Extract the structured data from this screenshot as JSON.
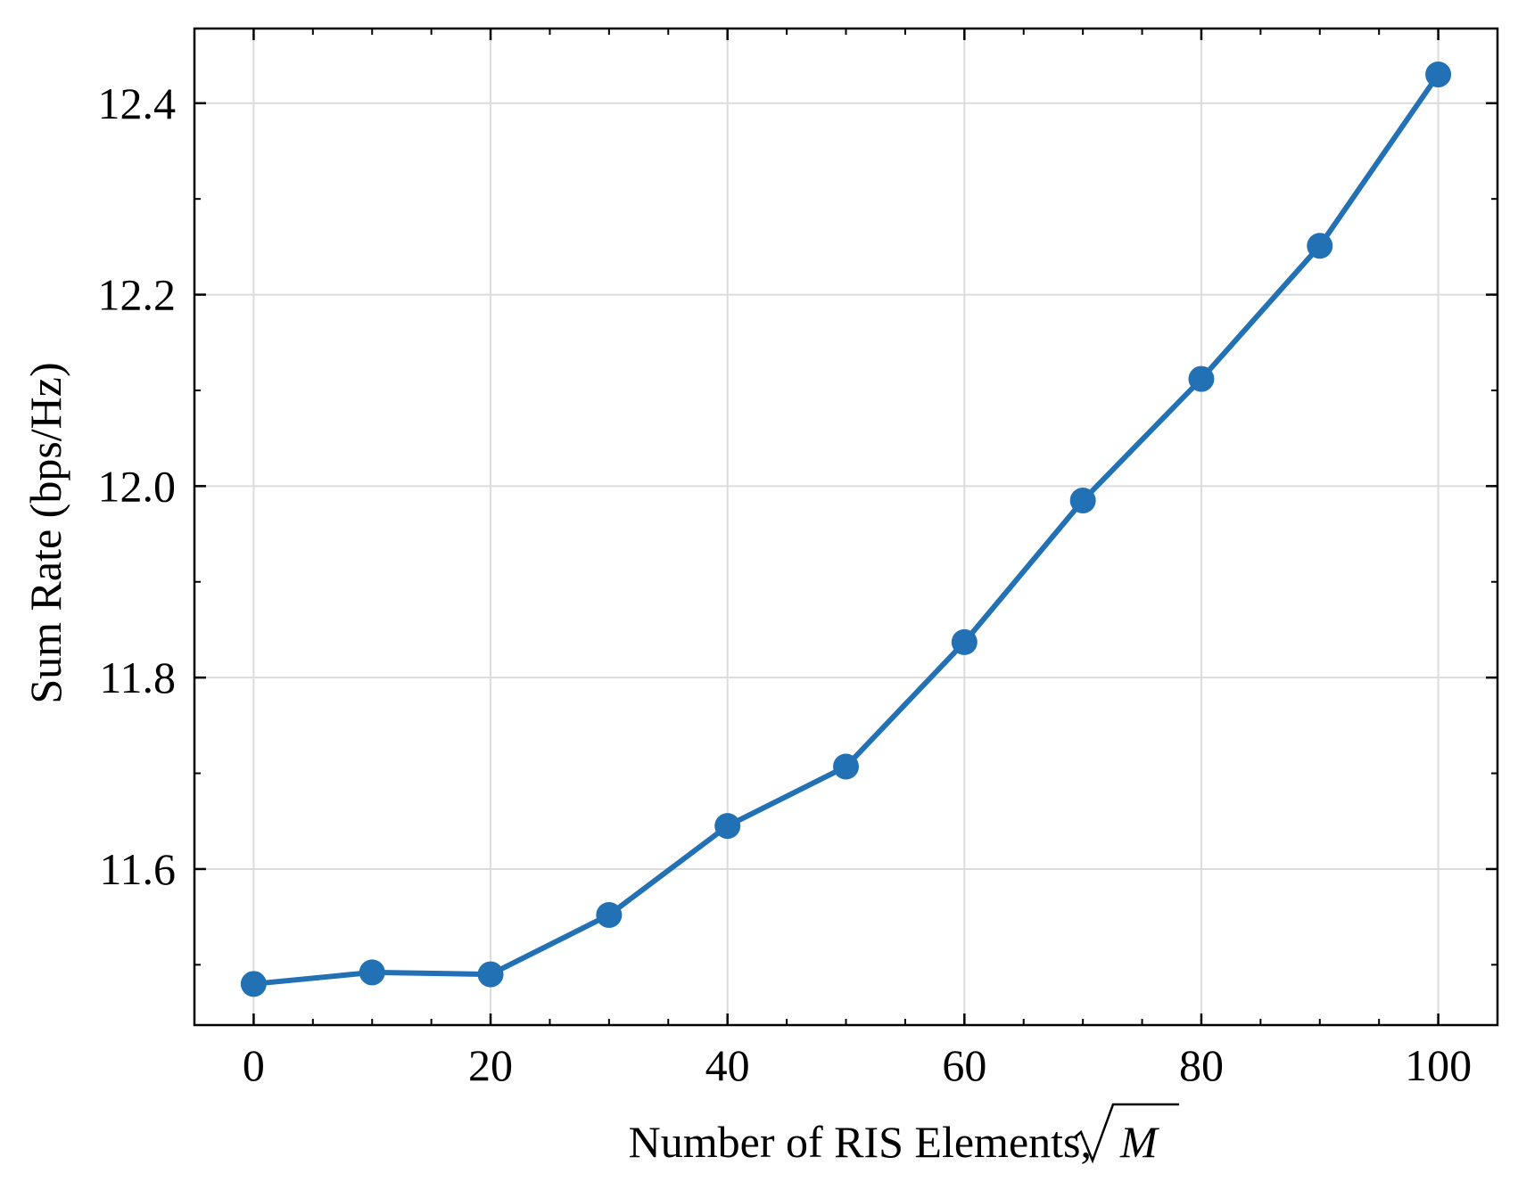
{
  "chart_data": {
    "type": "line",
    "title": "",
    "xlabel": "Number of RIS Elements, ",
    "xlabel_math": "√M",
    "ylabel": "Sum Rate (bps/Hz)",
    "xlim": [
      -5,
      105
    ],
    "ylim": [
      11.437,
      12.478
    ],
    "grid": true,
    "xticks": [
      0,
      20,
      40,
      60,
      80,
      100
    ],
    "xtick_labels": [
      "0",
      "20",
      "40",
      "60",
      "80",
      "100"
    ],
    "yticks": [
      11.6,
      11.8,
      12.0,
      12.2,
      12.4
    ],
    "ytick_labels": [
      "11.6",
      "11.8",
      "12.0",
      "12.2",
      "12.4"
    ],
    "x_minor_step": 5,
    "y_minor_step": 0.1,
    "series": [
      {
        "name": "",
        "color": "#2271b5",
        "marker": "circle",
        "x": [
          0,
          10,
          20,
          30,
          40,
          50,
          60,
          70,
          80,
          90,
          100
        ],
        "y": [
          11.48,
          11.492,
          11.49,
          11.552,
          11.645,
          11.707,
          11.837,
          11.985,
          12.112,
          12.251,
          12.43
        ]
      }
    ]
  }
}
